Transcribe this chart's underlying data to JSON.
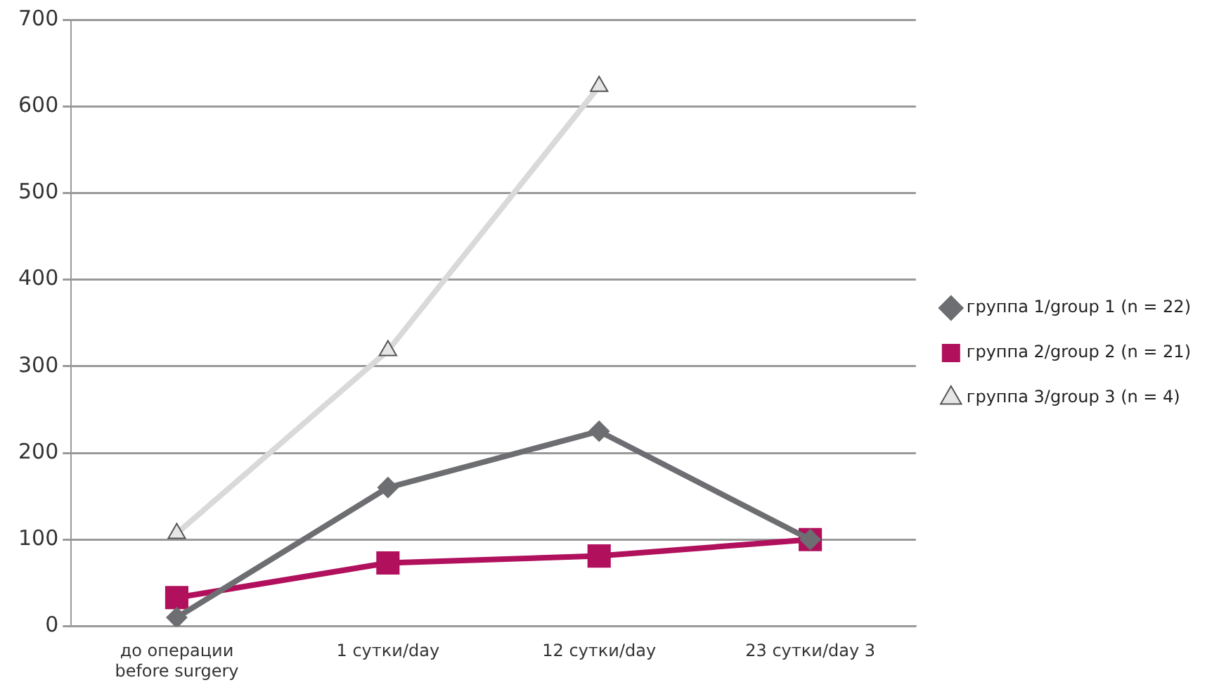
{
  "chart_data": {
    "type": "line",
    "categories": [
      "до операции before surgery",
      "1 сутки/day",
      "12 сутки/day",
      "23 сутки/day 3"
    ],
    "series": [
      {
        "name": "группа 1/group 1 (n = 22)",
        "color": "#6d6e71",
        "marker": "diamond",
        "values": [
          10,
          160,
          225,
          100
        ]
      },
      {
        "name": "группа 2/group 2 (n = 21)",
        "color": "#b0105c",
        "marker": "square",
        "values": [
          33,
          73,
          81,
          100
        ]
      },
      {
        "name": "группа 3/group 3 (n = 4)",
        "color": "#d9d9d9",
        "marker": "triangle",
        "values": [
          107,
          318,
          623,
          null
        ]
      }
    ],
    "ylim": [
      0,
      700
    ],
    "yticks": [
      0,
      100,
      200,
      300,
      400,
      500,
      600,
      700
    ],
    "grid": "y",
    "legend": "right",
    "line_style": "solid"
  }
}
